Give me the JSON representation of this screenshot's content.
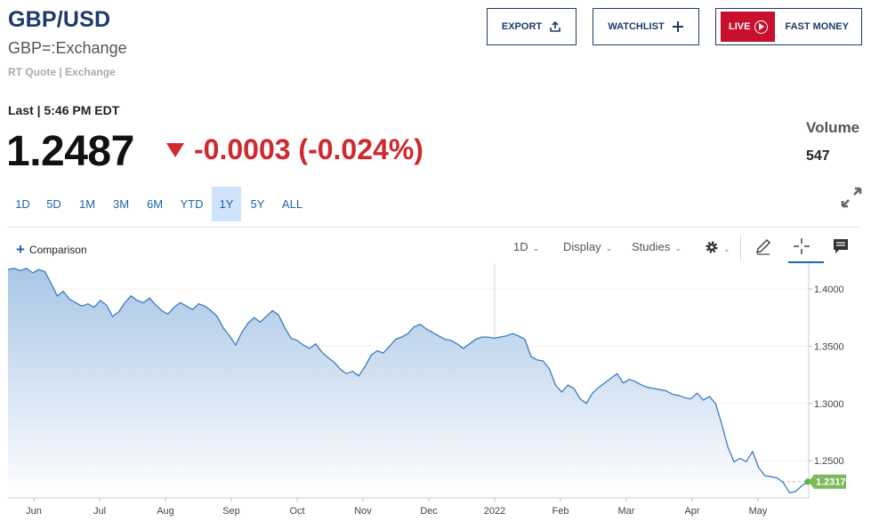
{
  "header": {
    "symbol": "GBP/USD",
    "name": "GBP=:Exchange",
    "quote_type": "RT Quote | Exchange"
  },
  "actions": {
    "export_label": "EXPORT",
    "watchlist_label": "WATCHLIST",
    "live_label": "LIVE",
    "fast_money_label": "FAST MONEY"
  },
  "quote": {
    "last_label": "Last | 5:46 PM EDT",
    "price": "1.2487",
    "change": "-0.0003 (-0.024%)",
    "direction": "down",
    "volume_label": "Volume",
    "volume_value": "547"
  },
  "colors": {
    "brand_navy": "#1d3a6b",
    "accent_blue": "#1f64ad",
    "down_red": "#d0282c",
    "live_red": "#c8102e",
    "last_price_green": "#7cba5c",
    "line": "#3b7dbf"
  },
  "ranges": [
    {
      "label": "1D",
      "active": false
    },
    {
      "label": "5D",
      "active": false
    },
    {
      "label": "1M",
      "active": false
    },
    {
      "label": "3M",
      "active": false
    },
    {
      "label": "6M",
      "active": false
    },
    {
      "label": "YTD",
      "active": false
    },
    {
      "label": "1Y",
      "active": true
    },
    {
      "label": "5Y",
      "active": false
    },
    {
      "label": "ALL",
      "active": false
    }
  ],
  "toolbar": {
    "comparison_label": "Comparison",
    "interval_label": "1D",
    "display_label": "Display",
    "studies_label": "Studies",
    "icons": [
      "gear-icon",
      "pencil-icon",
      "crosshair-icon",
      "comment-icon",
      "expand-icon"
    ]
  },
  "chart_data": {
    "type": "area",
    "series": [
      {
        "values": [
          1.417,
          1.418,
          1.416,
          1.418,
          1.414,
          1.417,
          1.415,
          1.405,
          1.394,
          1.398,
          1.391,
          1.388,
          1.385,
          1.387,
          1.384,
          1.39,
          1.386,
          1.376,
          1.38,
          1.388,
          1.394,
          1.39,
          1.388,
          1.392,
          1.386,
          1.381,
          1.378,
          1.384,
          1.388,
          1.385,
          1.382,
          1.387,
          1.385,
          1.381,
          1.376,
          1.366,
          1.359,
          1.351,
          1.362,
          1.37,
          1.375,
          1.371,
          1.376,
          1.381,
          1.377,
          1.366,
          1.357,
          1.355,
          1.351,
          1.348,
          1.352,
          1.345,
          1.34,
          1.336,
          1.33,
          1.326,
          1.328,
          1.324,
          1.332,
          1.342,
          1.346,
          1.344,
          1.35,
          1.356,
          1.358,
          1.361,
          1.367,
          1.369,
          1.365,
          1.362,
          1.359,
          1.356,
          1.355,
          1.352,
          1.348,
          1.352,
          1.356,
          1.358,
          1.358,
          1.357,
          1.358,
          1.359,
          1.361,
          1.359,
          1.356,
          1.341,
          1.338,
          1.337,
          1.33,
          1.316,
          1.31,
          1.316,
          1.313,
          1.304,
          1.3,
          1.309,
          1.314,
          1.318,
          1.322,
          1.326,
          1.318,
          1.321,
          1.319,
          1.316,
          1.314,
          1.313,
          1.312,
          1.311,
          1.308,
          1.307,
          1.305,
          1.304,
          1.309,
          1.303,
          1.306,
          1.3,
          1.282,
          1.262,
          1.249,
          1.252,
          1.249,
          1.258,
          1.244,
          1.237,
          1.236,
          1.235,
          1.231,
          1.222,
          1.223,
          1.228,
          1.2317
        ]
      }
    ],
    "x_ticks": [
      "Jun",
      "Jul",
      "Aug",
      "Sep",
      "Oct",
      "Nov",
      "Dec",
      "2022",
      "Feb",
      "Mar",
      "Apr",
      "May"
    ],
    "y_ticks": [
      "1.4000",
      "1.3500",
      "1.3000",
      "1.2500"
    ],
    "ylim": [
      1.2175,
      1.4225
    ],
    "last_value_label": "1.2317",
    "grid": true,
    "axis_position": "right"
  }
}
